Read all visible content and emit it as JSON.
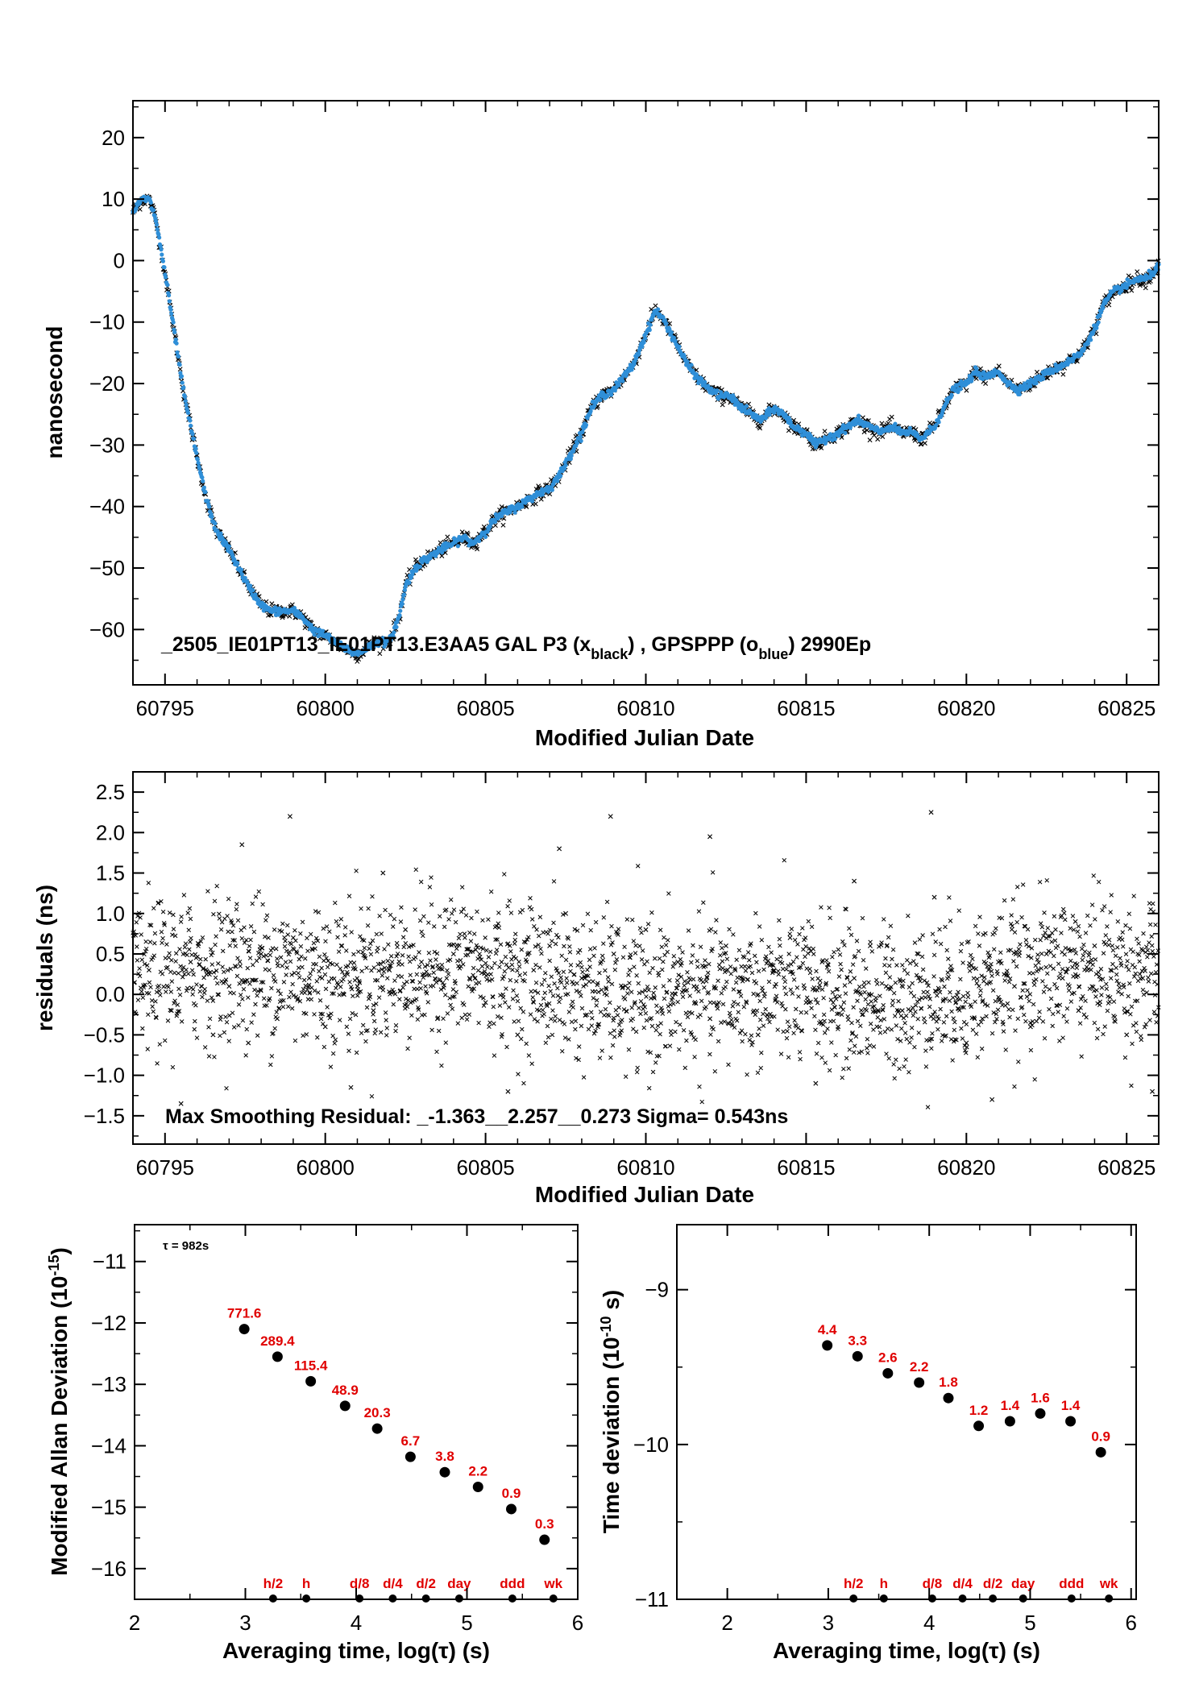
{
  "chart_data": [
    {
      "type": "scatter",
      "ylabel": "nanosecond",
      "xlabel": "Modified Julian Date",
      "annotation": {
        "main": "_2505_IE01PT13_IE01PT13.E3AA5     GAL P3 (x",
        "sub1": "black",
        "mid": ") ,  GPSPPP (o",
        "sub2": "blue",
        "end": ")  2990Ep"
      },
      "xlim": [
        60794.0,
        60826.0
      ],
      "ylim": [
        -69,
        26
      ],
      "xticks": [
        60795,
        60800,
        60805,
        60810,
        60815,
        60820,
        60825
      ],
      "yticks": [
        -60,
        -50,
        -40,
        -30,
        -20,
        -10,
        0,
        10,
        20
      ],
      "ytick_labels": [
        "−60",
        "−50",
        "−40",
        "−30",
        "−20",
        "−10",
        "0",
        "10",
        "20"
      ],
      "series": [
        {
          "marker": "x",
          "color": "#000000",
          "x": [
            60794.0,
            60794.3,
            60794.5,
            60794.7,
            60795.0,
            60795.3,
            60795.6,
            60796.0,
            60796.3,
            60796.6,
            60797.0,
            60797.3,
            60797.6,
            60798.0,
            60798.3,
            60798.6,
            60799.0,
            60799.3,
            60799.6,
            60800.0,
            60800.3,
            60800.6,
            60801.0,
            60801.3,
            60801.6,
            60802.0,
            60802.3,
            60802.5,
            60802.8,
            60803.0,
            60803.3,
            60803.6,
            60804.0,
            60804.3,
            60804.6,
            60805.0,
            60805.3,
            60805.6,
            60806.0,
            60806.3,
            60806.6,
            60807.0,
            60807.3,
            60807.6,
            60808.0,
            60808.3,
            60808.6,
            60809.0,
            60809.3,
            60809.6,
            60810.0,
            60810.3,
            60810.6,
            60811.0,
            60811.3,
            60811.6,
            60812.0,
            60812.3,
            60812.6,
            60813.0,
            60813.3,
            60813.6,
            60814.0,
            60814.3,
            60814.6,
            60815.0,
            60815.3,
            60815.6,
            60816.0,
            60816.3,
            60816.6,
            60817.0,
            60817.3,
            60817.6,
            60818.0,
            60818.3,
            60818.6,
            60819.0,
            60819.3,
            60819.6,
            60820.0,
            60820.3,
            60820.6,
            60821.0,
            60821.3,
            60821.6,
            60822.0,
            60822.3,
            60822.6,
            60823.0,
            60823.3,
            60823.6,
            60824.0,
            60824.3,
            60824.6,
            60825.0,
            60825.3,
            60825.6,
            60826.0
          ],
          "y": [
            8,
            10,
            10,
            7,
            -2,
            -12,
            -22,
            -32,
            -39,
            -44,
            -47,
            -50,
            -53,
            -56,
            -57,
            -57,
            -57,
            -58,
            -60,
            -61,
            -62,
            -63,
            -64,
            -63,
            -62,
            -62,
            -58,
            -53,
            -50,
            -49,
            -48,
            -47,
            -46,
            -45,
            -46,
            -44,
            -42,
            -41,
            -40,
            -39,
            -38,
            -37,
            -35,
            -32,
            -28,
            -24,
            -22,
            -21,
            -19,
            -17,
            -12,
            -8,
            -10,
            -14,
            -17,
            -19,
            -21,
            -22,
            -22,
            -24,
            -25,
            -26,
            -24,
            -25,
            -27,
            -28,
            -30,
            -29,
            -28,
            -27,
            -26,
            -27,
            -28,
            -27,
            -28,
            -28,
            -29,
            -27,
            -24,
            -21,
            -20,
            -18,
            -19,
            -18,
            -20,
            -21,
            -20,
            -19,
            -18,
            -17,
            -16,
            -15,
            -11,
            -7,
            -5,
            -4,
            -3,
            -3,
            -1
          ]
        },
        {
          "marker": "o",
          "color": "#2f8fd8",
          "x": [
            60794.0,
            60794.3,
            60794.5,
            60794.7,
            60795.0,
            60795.3,
            60795.6,
            60796.0,
            60796.3,
            60796.6,
            60797.0,
            60797.3,
            60797.6,
            60798.0,
            60798.3,
            60798.6,
            60799.0,
            60799.3,
            60799.6,
            60800.0,
            60800.3,
            60800.6,
            60801.0,
            60801.3,
            60801.6,
            60802.0,
            60802.3,
            60802.5,
            60802.8,
            60803.0,
            60803.3,
            60803.6,
            60804.0,
            60804.3,
            60804.6,
            60805.0,
            60805.3,
            60805.6,
            60806.0,
            60806.3,
            60806.6,
            60807.0,
            60807.3,
            60807.6,
            60808.0,
            60808.3,
            60808.6,
            60809.0,
            60809.3,
            60809.6,
            60810.0,
            60810.3,
            60810.6,
            60811.0,
            60811.3,
            60811.6,
            60812.0,
            60812.3,
            60812.6,
            60813.0,
            60813.3,
            60813.6,
            60814.0,
            60814.3,
            60814.6,
            60815.0,
            60815.3,
            60815.6,
            60816.0,
            60816.3,
            60816.6,
            60817.0,
            60817.3,
            60817.6,
            60818.0,
            60818.3,
            60818.6,
            60819.0,
            60819.3,
            60819.6,
            60820.0,
            60820.3,
            60820.6,
            60821.0,
            60821.3,
            60821.6,
            60822.0,
            60822.3,
            60822.6,
            60823.0,
            60823.3,
            60823.6,
            60824.0,
            60824.3,
            60824.6,
            60825.0,
            60825.3,
            60825.6,
            60826.0
          ],
          "y": [
            8,
            10,
            10,
            7,
            -2,
            -12,
            -22,
            -32,
            -39,
            -44,
            -47,
            -50,
            -53,
            -56,
            -57,
            -57,
            -57,
            -58,
            -60,
            -61,
            -62,
            -63,
            -64,
            -63,
            -62,
            -62,
            -58,
            -53,
            -50,
            -49,
            -48,
            -47,
            -46,
            -45,
            -46,
            -44,
            -42,
            -41,
            -40,
            -39,
            -38,
            -37,
            -35,
            -32,
            -28,
            -24,
            -22,
            -21,
            -19,
            -17,
            -12,
            -8,
            -10,
            -14,
            -17,
            -19,
            -21,
            -22,
            -22,
            -24,
            -25,
            -26,
            -24,
            -25,
            -27,
            -28,
            -30,
            -29,
            -28,
            -27,
            -26,
            -27,
            -28,
            -27,
            -28,
            -28,
            -29,
            -27,
            -24,
            -21,
            -20,
            -18,
            -19,
            -18,
            -20,
            -21,
            -20,
            -19,
            -18,
            -17,
            -16,
            -15,
            -11,
            -7,
            -5,
            -4,
            -3,
            -3,
            -1
          ]
        }
      ]
    },
    {
      "type": "scatter",
      "ylabel": "residuals (ns)",
      "xlabel": "Modified Julian Date",
      "annotation": "Max Smoothing Residual: _-1.363__2.257__0.273  Sigma= 0.543ns",
      "xlim": [
        60794.0,
        60826.0
      ],
      "ylim": [
        -1.85,
        2.75
      ],
      "xticks": [
        60795,
        60800,
        60805,
        60810,
        60815,
        60820,
        60825
      ],
      "yticks": [
        -1.5,
        -1.0,
        -0.5,
        0.0,
        0.5,
        1.0,
        1.5,
        2.0,
        2.5
      ],
      "ytick_labels": [
        "−1.5",
        "−1.0",
        "−0.5",
        "0.0",
        "0.5",
        "1.0",
        "1.5",
        "2.0",
        "2.5"
      ],
      "series": [
        {
          "marker": "x",
          "color": "#000000",
          "x": [
            60794.5,
            60795.2,
            60795.8,
            60796.5,
            60797.0,
            60797.6,
            60798.0,
            60798.5,
            60799.0,
            60799.5,
            60800.0,
            60800.5,
            60801.0,
            60801.5,
            60802.0,
            60802.5,
            60803.0,
            60803.5,
            60804.0,
            60804.5,
            60805.0,
            60805.5,
            60806.0,
            60806.5,
            60807.0,
            60807.5,
            60808.0,
            60808.5,
            60809.0,
            60809.5,
            60810.0,
            60810.5,
            60811.0,
            60811.5,
            60812.0,
            60812.5,
            60813.0,
            60813.5,
            60814.0,
            60814.5,
            60815.0,
            60815.5,
            60816.0,
            60816.5,
            60817.0,
            60817.5,
            60818.0,
            60818.5,
            60819.0,
            60819.5,
            60820.0,
            60820.5,
            60821.0,
            60821.5,
            60822.0,
            60822.5,
            60823.0,
            60823.5,
            60824.0,
            60824.5,
            60825.0,
            60825.5,
            60795.5,
            60797.4,
            60798.9,
            60800.8,
            60801.8,
            60805.7,
            60807.3,
            60808.9,
            60812.0,
            60815.3,
            60816.5,
            60818.9,
            60820.8,
            60823.4,
            60825.8
          ],
          "y": [
            0.3,
            -0.2,
            0.4,
            -0.5,
            0.1,
            -0.6,
            0.5,
            -0.3,
            0.7,
            0.2,
            -0.4,
            0.6,
            0.1,
            -0.2,
            0.3,
            0.8,
            0.4,
            -0.3,
            0.5,
            0.2,
            -0.1,
            0.4,
            -0.5,
            0.3,
            0.6,
            1.0,
            0.2,
            -0.4,
            0.5,
            0.3,
            0.8,
            -0.2,
            0.4,
            0.1,
            -0.3,
            0.6,
            0.2,
            -0.5,
            0.3,
            0.7,
            -0.1,
            0.4,
            -0.4,
            0.2,
            0.6,
            0.1,
            -0.2,
            0.5,
            1.2,
            0.3,
            -0.6,
            -0.3,
            0.4,
            0.1,
            -0.4,
            0.5,
            0.2,
            -0.2,
            0.6,
            0.3,
            -0.5,
            0.2,
            -1.35,
            1.85,
            2.2,
            -1.15,
            1.5,
            -1.2,
            1.8,
            2.2,
            1.95,
            -1.1,
            1.4,
            2.25,
            -1.3,
            0.9,
            -1.2
          ]
        }
      ]
    },
    {
      "type": "scatter",
      "ylabel": "Modified Allan Deviation (10",
      "ylabel_exp": "-15",
      "ylabel_end": ")",
      "xlabel": "Averaging time, log(τ) (s)",
      "annotation": "τ = 982s",
      "xlim": [
        2,
        6
      ],
      "ylim": [
        -16.5,
        -10.4
      ],
      "xticks": [
        2,
        3,
        4,
        5,
        6
      ],
      "yticks": [
        -16,
        -15,
        -14,
        -13,
        -12,
        -11
      ],
      "ytick_labels": [
        "−16",
        "−15",
        "−14",
        "−13",
        "−12",
        "−11"
      ],
      "x": [
        2.99,
        3.29,
        3.59,
        3.9,
        4.19,
        4.49,
        4.8,
        5.1,
        5.4,
        5.7
      ],
      "y": [
        -12.1,
        -12.55,
        -12.95,
        -13.35,
        -13.72,
        -14.18,
        -14.43,
        -14.67,
        -15.03,
        -15.53
      ],
      "point_labels": [
        "771.6",
        "289.4",
        "115.4",
        "48.9",
        "20.3",
        "6.7",
        "3.8",
        "2.2",
        "0.9",
        "0.3"
      ],
      "markers": {
        "x": [
          3.25,
          3.55,
          4.03,
          4.33,
          4.63,
          4.93,
          5.41,
          5.78
        ],
        "labels": [
          "h/2",
          "h",
          "d/8",
          "d/4",
          "d/2",
          "day",
          "ddd",
          "wk"
        ]
      }
    },
    {
      "type": "scatter",
      "ylabel": "Time deviation (10",
      "ylabel_exp": "-10",
      "ylabel_end": " s)",
      "xlabel": "Averaging time, log(τ) (s)",
      "xlim": [
        1.5,
        6.05
      ],
      "ylim": [
        -11,
        -8.58
      ],
      "xticks": [
        2,
        3,
        4,
        5,
        6
      ],
      "yticks": [
        -11,
        -10,
        -9
      ],
      "ytick_labels": [
        "−11",
        "−10",
        "−9"
      ],
      "x": [
        2.99,
        3.29,
        3.59,
        3.9,
        4.19,
        4.49,
        4.8,
        5.1,
        5.4,
        5.7
      ],
      "y": [
        -9.36,
        -9.43,
        -9.54,
        -9.6,
        -9.7,
        -9.88,
        -9.85,
        -9.8,
        -9.85,
        -10.05
      ],
      "point_labels": [
        "4.4",
        "3.3",
        "2.6",
        "2.2",
        "1.8",
        "1.2",
        "1.4",
        "1.6",
        "1.4",
        "0.9"
      ],
      "markers": {
        "x": [
          3.25,
          3.55,
          4.03,
          4.33,
          4.63,
          4.93,
          5.41,
          5.78
        ],
        "labels": [
          "h/2",
          "h",
          "d/8",
          "d/4",
          "d/2",
          "day",
          "ddd",
          "wk"
        ]
      }
    }
  ]
}
